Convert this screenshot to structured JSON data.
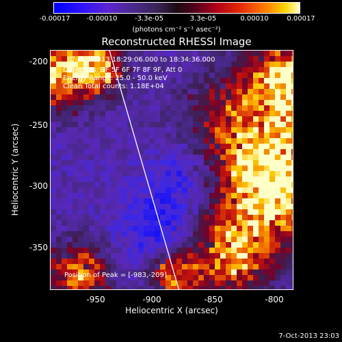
{
  "colorbar": {
    "ticks": [
      "-0.00017",
      "-0.00010",
      "-3.3e-05",
      "3.3e-05",
      "0.00010",
      "0.00017"
    ],
    "units": "(photons cm⁻² s⁻¹ asec⁻²)",
    "colors": [
      "#0000ff",
      "#5d24d0",
      "#3a2458",
      "#58001c",
      "#e32a00",
      "#ffd300",
      "#ffffc8"
    ]
  },
  "title": "Reconstructed RHESSI Image",
  "annotations": {
    "time_range": "7-Oct-2013 18:29:06.000 to 18:34:36.000",
    "detectors": "Detectors: 3F 5F 6F 7F 8F 9F, Att 0",
    "energy_range": "Energy Range: 25.0 - 50.0 keV",
    "method": "Clean    Total counts: 1.18E+04",
    "peak": "Position of Peak = [-983,-209]"
  },
  "axes": {
    "xlabel": "Heliocentric X (arcsec)",
    "ylabel": "Heliocentric Y (arcsec)",
    "xticks": [
      "-950",
      "-900",
      "-850",
      "-800"
    ],
    "yticks": [
      "-200",
      "-250",
      "-300",
      "-350"
    ],
    "xlim": [
      -983,
      -791
    ],
    "ylim": [
      -384,
      -195
    ]
  },
  "footer": {
    "date": "7-Oct-2013 23:03"
  }
}
